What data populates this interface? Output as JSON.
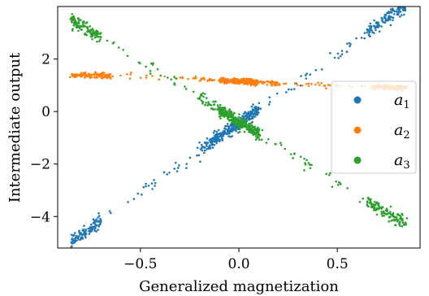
{
  "chart_data": {
    "type": "scatter",
    "xlabel": "Generalized magnetization",
    "ylabel": "Intermediate output",
    "xlim": [
      -0.92,
      0.92
    ],
    "ylim": [
      -5.2,
      4.0
    ],
    "xticks": [
      -0.5,
      0.0,
      0.5
    ],
    "xtick_labels": [
      "−0.5",
      "0.0",
      "0.5"
    ],
    "yticks": [
      -4,
      -2,
      0,
      2
    ],
    "ytick_labels": [
      "−4",
      "−2",
      "0",
      "2"
    ],
    "grid": false,
    "legend_position": "center-right",
    "series": [
      {
        "name": "a",
        "subscript": "1",
        "color": "#1f77b4",
        "shape": "linear",
        "slope": 5.3,
        "intercept": -0.45,
        "x_ranges": [
          [
            -0.85,
            -0.7
          ],
          [
            -0.2,
            0.12
          ],
          [
            0.65,
            0.85
          ]
        ],
        "dense": [
          [
            -0.15,
            0.1
          ]
        ],
        "spread": 0.12
      },
      {
        "name": "a",
        "subscript": "2",
        "color": "#ff7f0e",
        "shape": "curve",
        "points": [
          [
            -0.85,
            1.4
          ],
          [
            -0.6,
            1.35
          ],
          [
            -0.3,
            1.25
          ],
          [
            0.0,
            1.15
          ],
          [
            0.3,
            1.05
          ],
          [
            0.6,
            0.95
          ],
          [
            0.85,
            0.9
          ]
        ],
        "x_ranges": [
          [
            -0.85,
            -0.65
          ],
          [
            -0.2,
            0.2
          ],
          [
            0.68,
            0.85
          ]
        ],
        "dense": [
          [
            -0.1,
            0.1
          ]
        ],
        "spread": 0.05
      },
      {
        "name": "a",
        "subscript": "3",
        "color": "#2ca02c",
        "shape": "linear",
        "slope": -4.6,
        "intercept": -0.4,
        "x_ranges": [
          [
            -0.85,
            -0.7
          ],
          [
            -0.2,
            0.12
          ],
          [
            0.65,
            0.85
          ]
        ],
        "dense": [
          [
            -0.1,
            0.1
          ]
        ],
        "spread": 0.12
      }
    ]
  }
}
